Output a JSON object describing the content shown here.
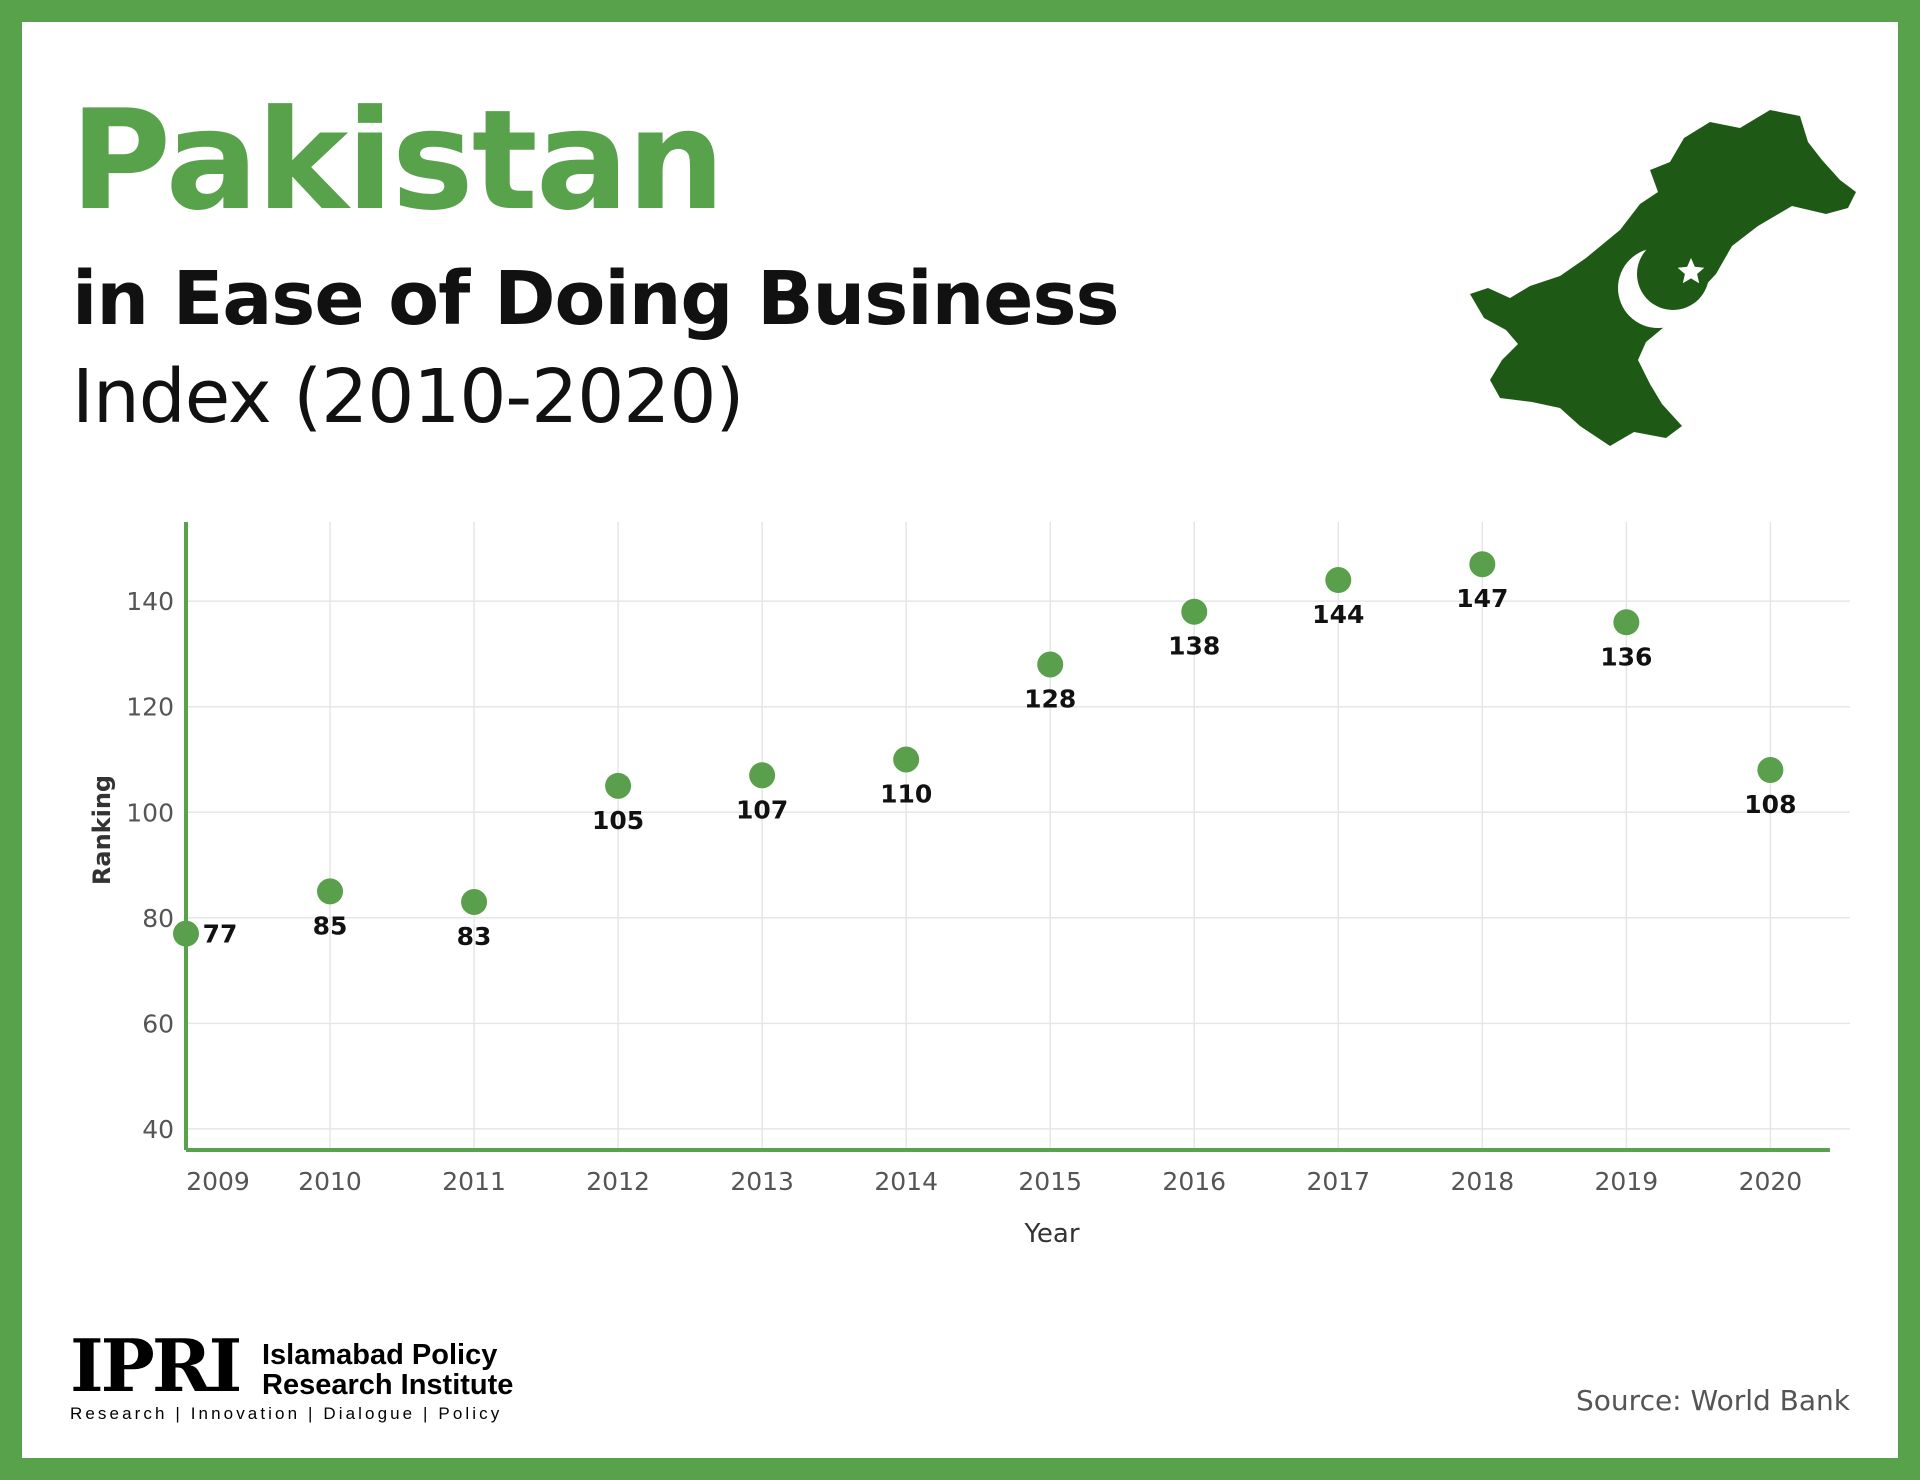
{
  "header": {
    "title": "Pakistan",
    "subtitle": "in Ease of Doing Business",
    "subtitle2": "Index (2010-2020)"
  },
  "logo": {
    "mark": "IPRI",
    "name_line1": "Islamabad Policy",
    "name_line2": "Research Institute",
    "tagline": "Research | Innovation | Dialogue | Policy"
  },
  "footer": {
    "source": "Source: World Bank"
  },
  "colors": {
    "frame": "#58a24c",
    "accent": "#58a24c",
    "marker": "#5aa04c",
    "map": "#1e5a16",
    "text": "#111111"
  },
  "icons": {
    "map": "pakistan-map-icon",
    "flag": "crescent-star-icon"
  },
  "chart_data": {
    "type": "scatter",
    "xlabel": "Year",
    "ylabel": "Ranking",
    "x": [
      2009,
      2010,
      2011,
      2012,
      2013,
      2014,
      2015,
      2016,
      2017,
      2018,
      2019,
      2020
    ],
    "y": [
      77,
      85,
      83,
      105,
      107,
      110,
      128,
      138,
      144,
      147,
      136,
      108
    ],
    "data_labels": [
      "77",
      "85",
      "83",
      "105",
      "107",
      "110",
      "128",
      "138",
      "144",
      "147",
      "136",
      "108"
    ],
    "x_ticks": [
      "2009",
      "2010",
      "2011",
      "2012",
      "2013",
      "2014",
      "2015",
      "2016",
      "2017",
      "2018",
      "2019",
      "2020"
    ],
    "y_ticks": [
      "40",
      "60",
      "80",
      "100",
      "120",
      "140"
    ],
    "xlim": [
      2009,
      2020.4
    ],
    "ylim": [
      36,
      155
    ],
    "grid": true,
    "legend": "none"
  }
}
